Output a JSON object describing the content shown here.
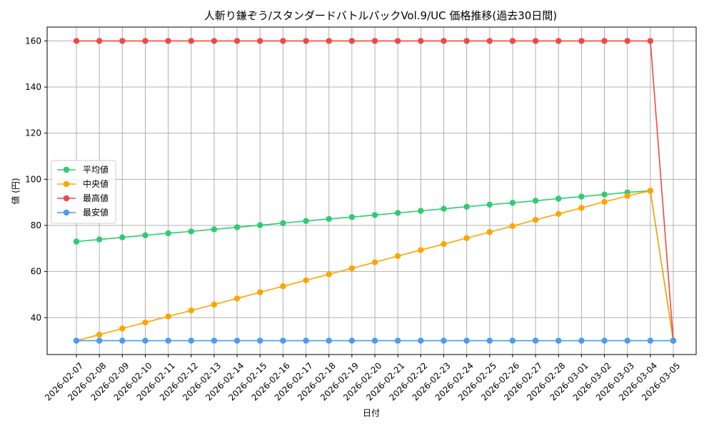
{
  "chart_data": {
    "type": "line",
    "title": "人斬り鎌ぞう/スタンダードバトルパックVol.9/UC 価格推移(過去30日間)",
    "xlabel": "日付",
    "ylabel": "値 (円)",
    "categories": [
      "2026-02-07",
      "2026-02-08",
      "2026-02-09",
      "2026-02-10",
      "2026-02-11",
      "2026-02-12",
      "2026-02-13",
      "2026-02-14",
      "2026-02-15",
      "2026-02-16",
      "2026-02-17",
      "2026-02-18",
      "2026-02-19",
      "2026-02-20",
      "2026-02-21",
      "2026-02-22",
      "2026-02-23",
      "2026-02-24",
      "2026-02-25",
      "2026-02-26",
      "2026-02-27",
      "2026-02-28",
      "2026-03-01",
      "2026-03-02",
      "2026-03-03",
      "2026-03-04",
      "2026-03-05"
    ],
    "ylim": [
      24,
      166
    ],
    "yticks": [
      40,
      60,
      80,
      100,
      120,
      140,
      160
    ],
    "grid": true,
    "legend_position": "center-left",
    "series": [
      {
        "name": "平均値",
        "color": "#2ecc71",
        "values": [
          73,
          73.9,
          74.8,
          75.7,
          76.6,
          77.4,
          78.3,
          79.2,
          80.1,
          81.0,
          81.9,
          82.8,
          83.6,
          84.5,
          85.4,
          86.3,
          87.2,
          88.1,
          89.0,
          89.8,
          90.7,
          91.6,
          92.5,
          93.4,
          94.3,
          95,
          30
        ]
      },
      {
        "name": "中央値",
        "color": "#ffa500",
        "values": [
          30,
          32.6,
          35.3,
          37.9,
          40.5,
          43.1,
          45.7,
          48.3,
          51.0,
          53.6,
          56.2,
          58.8,
          61.4,
          64.0,
          66.7,
          69.3,
          71.9,
          74.5,
          77.1,
          79.7,
          82.4,
          85.0,
          87.6,
          90.2,
          92.8,
          95,
          30
        ]
      },
      {
        "name": "最高値",
        "color": "#f04848",
        "values": [
          160,
          160,
          160,
          160,
          160,
          160,
          160,
          160,
          160,
          160,
          160,
          160,
          160,
          160,
          160,
          160,
          160,
          160,
          160,
          160,
          160,
          160,
          160,
          160,
          160,
          160,
          30
        ]
      },
      {
        "name": "最安値",
        "color": "#4a9cf0",
        "values": [
          30,
          30,
          30,
          30,
          30,
          30,
          30,
          30,
          30,
          30,
          30,
          30,
          30,
          30,
          30,
          30,
          30,
          30,
          30,
          30,
          30,
          30,
          30,
          30,
          30,
          30,
          30
        ]
      }
    ]
  }
}
